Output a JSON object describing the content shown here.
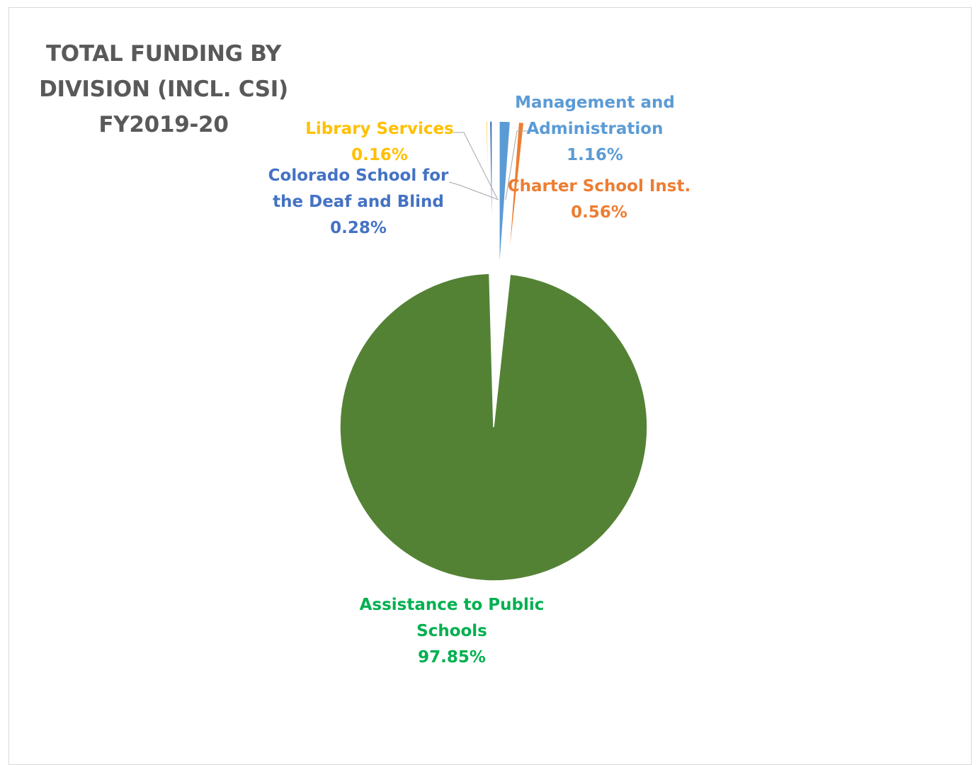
{
  "title_lines": [
    "TOTAL FUNDING BY",
    "DIVISION (INCL. CSI)",
    "FY2019-20"
  ],
  "chart_data": {
    "type": "pie",
    "title": "TOTAL FUNDING BY DIVISION (INCL. CSI) FY2019-20",
    "start_angle_deg": 0,
    "direction": "clockwise",
    "slices": [
      {
        "label_lines": [
          "Management and",
          "Administration"
        ],
        "value": 1.16,
        "percent_label": "1.16%",
        "color": "#5b9bd5",
        "label_color": "#5b9bd5"
      },
      {
        "label_lines": [
          "Charter School Inst."
        ],
        "value": 0.56,
        "percent_label": "0.56%",
        "color": "#ed7d31",
        "label_color": "#ed7d31"
      },
      {
        "label_lines": [
          "Assistance to Public",
          "Schools"
        ],
        "value": 97.85,
        "percent_label": "97.85%",
        "color": "#548235",
        "label_color": "#00b050"
      },
      {
        "label_lines": [
          "Library Services"
        ],
        "value": 0.16,
        "percent_label": "0.16%",
        "color": "#ffc000",
        "label_color": "#ffc000"
      },
      {
        "label_lines": [
          "Colorado School for",
          "the Deaf and Blind"
        ],
        "value": 0.28,
        "percent_label": "0.28%",
        "color": "#4472c4",
        "label_color": "#4472c4"
      }
    ],
    "legend": "none",
    "data_labels": "category name and percentage"
  }
}
